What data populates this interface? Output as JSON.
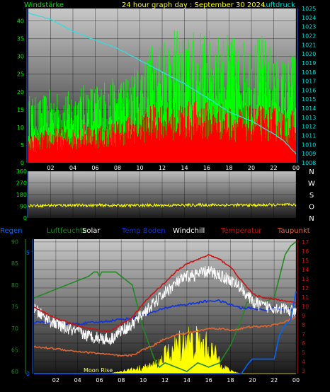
{
  "header": {
    "left_label": "Windstärke",
    "title": "24 hour graph day : September 30 2024",
    "right_label": "Luftdruck"
  },
  "colors": {
    "wind_axis": "#00ee00",
    "pressure_axis": "#00dddd",
    "title": "#ffff00",
    "wind_gust": "#00ff00",
    "wind_speed": "#ff0000",
    "pressure_line": "#33dddd",
    "direction_line": "#ffff00",
    "regen": "#0066ff",
    "luftfeuchte": "#228822",
    "solar": "#ffff00",
    "temp_boden": "#1133dd",
    "windchill": "#ffffff",
    "temperatur": "#cc1111",
    "taupunkt": "#dd6633"
  },
  "chart_data": [
    {
      "type": "line",
      "title": "24 hour graph day : September 30 2024",
      "x_ticks": [
        "02",
        "04",
        "06",
        "08",
        "10",
        "12",
        "14",
        "16",
        "18",
        "20",
        "22",
        "00"
      ],
      "y_left_label": "Windstärke",
      "y_left_ticks": [
        0,
        5,
        10,
        15,
        20,
        25,
        30,
        35,
        40
      ],
      "y_left_range": [
        0,
        43.5
      ],
      "y_right_label": "Luftdruck",
      "y_right_ticks": [
        1008,
        1009,
        1010,
        1011,
        1012,
        1013,
        1014,
        1015,
        1016,
        1017,
        1018,
        1019,
        1020,
        1021,
        1022,
        1023,
        1024,
        1025
      ],
      "y_right_range": [
        1008,
        1025
      ],
      "x_range": [
        0,
        24
      ],
      "series": [
        {
          "name": "Windstärke",
          "axis": "left",
          "style": "noisy-bars",
          "x": [
            0,
            1,
            2,
            3,
            4,
            5,
            6,
            7,
            8,
            9,
            10,
            11,
            12,
            13,
            14,
            15,
            16,
            17,
            18,
            19,
            20,
            21,
            22,
            23,
            24
          ],
          "values": [
            14,
            13,
            15,
            14,
            15,
            16,
            16,
            17,
            17,
            18,
            21,
            24,
            27,
            27,
            26,
            27,
            27,
            26,
            26,
            25,
            25,
            26,
            23,
            21,
            23
          ]
        },
        {
          "name": "",
          "axis": "left",
          "style": "noisy-bars",
          "x": [
            0,
            1,
            2,
            3,
            4,
            5,
            6,
            7,
            8,
            9,
            10,
            11,
            12,
            13,
            14,
            15,
            16,
            17,
            18,
            19,
            20,
            21,
            22,
            23,
            24
          ],
          "values": [
            6,
            7,
            8,
            8,
            8,
            9,
            9,
            9,
            10,
            11,
            12,
            13,
            14,
            14,
            14,
            14,
            14,
            14,
            13,
            13,
            13,
            13,
            13,
            12,
            12
          ]
        },
        {
          "name": "Luftdruck",
          "axis": "right",
          "style": "line",
          "x": [
            0,
            2,
            4,
            6,
            8,
            10,
            12,
            14,
            16,
            18,
            20,
            22,
            23,
            24
          ],
          "values": [
            1024.5,
            1023.8,
            1022.5,
            1021.5,
            1020.6,
            1019.3,
            1018,
            1016.7,
            1015.2,
            1013.6,
            1012.6,
            1011.2,
            1010.3,
            1009
          ]
        }
      ]
    },
    {
      "type": "line",
      "x_ticks": [
        "02",
        "04",
        "06",
        "08",
        "10",
        "12",
        "14",
        "16",
        "18",
        "20",
        "22",
        "00"
      ],
      "y_left_ticks": [
        0,
        90,
        180,
        270,
        360
      ],
      "y_left_range": [
        0,
        360
      ],
      "y_right_ticks": [
        "N",
        "W",
        "S",
        "O",
        "N"
      ],
      "x_range": [
        0,
        24
      ],
      "series": [
        {
          "name": "",
          "style": "noisy-line",
          "x": [
            0,
            4,
            8,
            12,
            16,
            20,
            24
          ],
          "values": [
            95,
            98,
            96,
            97,
            100,
            98,
            102
          ]
        }
      ]
    },
    {
      "type": "line",
      "legend": [
        "Regen",
        "Luftfeuchte",
        "Solar",
        "Temp Boden",
        "Windchill",
        "Temperatur",
        "Taupunkt"
      ],
      "x_ticks": [
        "02",
        "04",
        "06",
        "08",
        "10",
        "12",
        "14",
        "16",
        "18",
        "20",
        "22",
        "00"
      ],
      "y_left1_ticks": [
        0,
        5
      ],
      "y_left1_range": [
        0,
        5.55
      ],
      "y_left2_ticks": [
        60,
        65,
        70,
        75,
        80,
        85,
        90
      ],
      "y_left2_range": [
        59.5,
        90.6
      ],
      "y_right_ticks": [
        3,
        4,
        5,
        6,
        7,
        8,
        9,
        10,
        11,
        12,
        13,
        14,
        15,
        16,
        17
      ],
      "y_right_range": [
        2.7,
        17.3
      ],
      "annotation": "Moon Rise",
      "x_range": [
        0,
        24
      ],
      "series": [
        {
          "name": "Regen",
          "axis": "left1",
          "style": "line",
          "x": [
            0,
            19,
            19.6,
            20,
            21,
            22,
            22.5,
            23,
            23.5,
            24
          ],
          "values": [
            0,
            0,
            0.4,
            0.6,
            0.6,
            0.6,
            1.6,
            2,
            2.2,
            3.4
          ]
        },
        {
          "name": "Luftfeuchte",
          "axis": "left2",
          "style": "line",
          "x": [
            0,
            1,
            2,
            3,
            4,
            5,
            5.5,
            5.8,
            6,
            6.2,
            7.5,
            8,
            9,
            10,
            11,
            11.5,
            12,
            13,
            14,
            15,
            16,
            17,
            17.5,
            18,
            18.5,
            19,
            19.5,
            20,
            21,
            22,
            23,
            23.5,
            24
          ],
          "values": [
            77,
            78,
            79,
            80,
            81,
            82,
            83,
            83,
            82,
            83,
            83,
            82,
            80,
            70,
            63,
            61,
            62,
            61,
            60,
            62,
            61,
            62,
            64,
            66,
            69,
            72,
            76,
            76,
            76,
            77,
            87,
            89,
            90
          ]
        },
        {
          "name": "Solar",
          "axis": "right",
          "style": "noisy-area",
          "x": [
            0,
            7,
            8,
            9,
            10,
            11,
            11.5,
            12,
            12.5,
            13,
            13.5,
            14,
            14.5,
            15,
            15.5,
            16,
            16.5,
            17,
            17.5,
            18,
            19,
            24
          ],
          "values": [
            2.7,
            2.7,
            3,
            3.2,
            3.4,
            3.7,
            4,
            4.8,
            5.2,
            5.8,
            6.3,
            6.8,
            6.2,
            6.4,
            6,
            5.8,
            5,
            4.3,
            3.5,
            3,
            2.7,
            2.7
          ]
        },
        {
          "name": "Temp Boden",
          "axis": "right",
          "style": "line",
          "x": [
            0,
            2,
            4,
            6,
            8,
            9,
            10,
            11,
            12,
            13,
            14,
            15,
            16,
            17,
            18,
            19,
            20,
            21,
            22,
            23,
            23.5,
            24
          ],
          "values": [
            8.3,
            8.2,
            8.1,
            8.3,
            8.6,
            8.7,
            9.1,
            9.4,
            9.8,
            10.1,
            10.2,
            10.4,
            10.6,
            10.6,
            10.2,
            9.8,
            9.8,
            9.6,
            9.8,
            9.7,
            9.7,
            9.3
          ]
        },
        {
          "name": "Windchill",
          "axis": "right",
          "style": "noisy-line",
          "x": [
            0,
            1,
            2,
            3,
            4,
            5,
            6,
            7,
            8,
            9,
            10,
            11,
            12,
            13,
            14,
            15,
            16,
            17,
            18,
            19,
            20,
            21,
            22,
            23,
            24
          ],
          "values": [
            9.7,
            8.8,
            8.1,
            7.6,
            7.2,
            6.8,
            6.6,
            6.4,
            7.4,
            8,
            9.3,
            10.3,
            11.5,
            12.5,
            13.2,
            13.5,
            13.8,
            13.4,
            12.8,
            12,
            10.5,
            10,
            9.9,
            9.7,
            9.2
          ]
        },
        {
          "name": "Temperatur",
          "axis": "right",
          "style": "line",
          "x": [
            0,
            1,
            2,
            3,
            4,
            5,
            6,
            7,
            8,
            9,
            10,
            11,
            12,
            13,
            14,
            15,
            16,
            17,
            18,
            19,
            20,
            21,
            22,
            23,
            24
          ],
          "values": [
            9.9,
            9.3,
            8.7,
            8.3,
            7.9,
            7.6,
            7.4,
            7.3,
            8.1,
            8.8,
            10.3,
            11.5,
            12.6,
            13.8,
            14.6,
            15.1,
            15.6,
            15.1,
            14.3,
            12.8,
            11.4,
            10.9,
            10.8,
            10.6,
            10.4
          ]
        },
        {
          "name": "Taupunkt",
          "axis": "right",
          "style": "line",
          "x": [
            0,
            2,
            4,
            6,
            8,
            9,
            10,
            11,
            12,
            13,
            14,
            15,
            16,
            17,
            18,
            19,
            20,
            21,
            22,
            23,
            23.5,
            24
          ],
          "values": [
            5.6,
            5.4,
            5.1,
            4.9,
            4.6,
            4.7,
            5.3,
            5.8,
            6.5,
            6.9,
            7.1,
            7.3,
            7.6,
            7.6,
            7.4,
            7.6,
            7.8,
            7.8,
            8,
            8.3,
            8.6,
            8.9
          ]
        }
      ]
    }
  ]
}
